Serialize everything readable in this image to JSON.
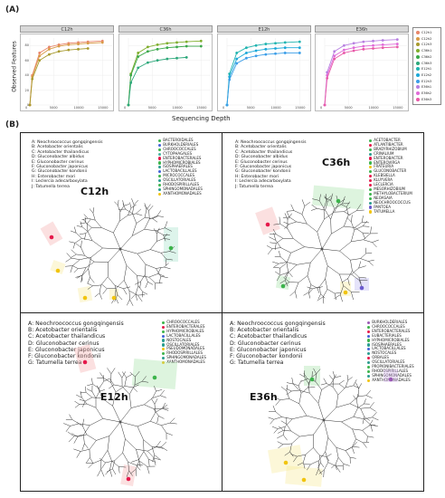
{
  "panel_a_label": "(A)",
  "panel_b_label": "(B)",
  "chart_data": {
    "type": "line",
    "ylabel": "Observed Features",
    "xlabel": "Sequencing Depth",
    "x": [
      0,
      1000,
      2500,
      5000,
      7500,
      10000,
      12500,
      15000
    ],
    "xticks": [
      "0",
      "5000",
      "10000",
      "15000"
    ],
    "yticks": [
      "0",
      "20",
      "40",
      "60",
      "80"
    ],
    "ylim": [
      0,
      90
    ],
    "xlim": [
      0,
      17000
    ],
    "facets": [
      {
        "title": "C12h",
        "series": [
          {
            "name": "C12h1",
            "color": "#e8866a",
            "x": [
              0,
              500,
              2000,
              4000,
              6000,
              8000,
              10000,
              12000,
              15000
            ],
            "values": [
              0,
              40,
              70,
              78,
              81,
              83,
              84,
              85,
              86
            ]
          },
          {
            "name": "C12h2",
            "color": "#d99a45",
            "x": [
              0,
              500,
              2000,
              4000,
              6000,
              8000,
              10000,
              12000,
              15000
            ],
            "values": [
              0,
              38,
              66,
              75,
              79,
              81,
              82,
              83,
              84
            ]
          },
          {
            "name": "C12h3",
            "color": "#a89a2e",
            "x": [
              0,
              500,
              2000,
              4000,
              6000,
              8000,
              10000,
              12000
            ],
            "values": [
              0,
              35,
              60,
              68,
              72,
              74,
              75,
              76
            ]
          }
        ]
      },
      {
        "title": "C36h",
        "series": [
          {
            "name": "C36h1",
            "color": "#7fae2c",
            "x": [
              0,
              500,
              2000,
              4000,
              6000,
              8000,
              10000,
              12000,
              15000
            ],
            "values": [
              0,
              42,
              70,
              78,
              81,
              83,
              84,
              85,
              86
            ]
          },
          {
            "name": "C36h2",
            "color": "#3aa84a",
            "x": [
              0,
              500,
              2000,
              4000,
              6000,
              8000,
              10000,
              12000,
              15000
            ],
            "values": [
              0,
              40,
              65,
              72,
              75,
              77,
              78,
              79,
              79
            ]
          },
          {
            "name": "C36h3",
            "color": "#2ca87a",
            "x": [
              0,
              500,
              2000,
              4000,
              6000,
              8000,
              10000,
              12000
            ],
            "values": [
              0,
              30,
              50,
              57,
              60,
              62,
              63,
              64
            ]
          }
        ]
      },
      {
        "title": "E12h",
        "series": [
          {
            "name": "E12h1",
            "color": "#20b4b0",
            "x": [
              0,
              500,
              2000,
              4000,
              6000,
              8000,
              10000,
              12000,
              15000
            ],
            "values": [
              0,
              42,
              70,
              77,
              80,
              82,
              83,
              84,
              85
            ]
          },
          {
            "name": "E12h2",
            "color": "#1ca8d8",
            "x": [
              0,
              500,
              2000,
              4000,
              6000,
              8000,
              10000,
              12000,
              15000
            ],
            "values": [
              0,
              38,
              62,
              70,
              73,
              75,
              76,
              77,
              77
            ]
          },
          {
            "name": "E12h3",
            "color": "#3b9ee8",
            "x": [
              0,
              500,
              2000,
              4000,
              6000,
              8000,
              10000,
              12000,
              15000
            ],
            "values": [
              0,
              34,
              56,
              63,
              66,
              68,
              69,
              70,
              70
            ]
          }
        ]
      },
      {
        "title": "E36h",
        "series": [
          {
            "name": "E36h1",
            "color": "#b77fe0",
            "x": [
              0,
              500,
              2000,
              4000,
              6000,
              8000,
              10000,
              12000,
              15000
            ],
            "values": [
              0,
              44,
              72,
              80,
              83,
              85,
              86,
              87,
              88
            ]
          },
          {
            "name": "E36h2",
            "color": "#e06ad8",
            "x": [
              0,
              500,
              2000,
              4000,
              6000,
              8000,
              10000,
              12000,
              15000
            ],
            "values": [
              0,
              40,
              66,
              74,
              77,
              79,
              80,
              81,
              82
            ]
          },
          {
            "name": "E36h3",
            "color": "#e85aa8",
            "x": [
              0,
              500,
              2000,
              4000,
              6000,
              8000,
              10000,
              12000,
              15000
            ],
            "values": [
              0,
              36,
              62,
              70,
              73,
              75,
              76,
              77,
              78
            ]
          }
        ]
      }
    ],
    "legend_position": "right"
  },
  "legend": [
    {
      "label": "C12h1",
      "color": "#e8866a"
    },
    {
      "label": "C12h2",
      "color": "#d99a45"
    },
    {
      "label": "C12h3",
      "color": "#a89a2e"
    },
    {
      "label": "C36h1",
      "color": "#7fae2c"
    },
    {
      "label": "C36h2",
      "color": "#3aa84a"
    },
    {
      "label": "C36h3",
      "color": "#2ca87a"
    },
    {
      "label": "E12h1",
      "color": "#20b4b0"
    },
    {
      "label": "E12h2",
      "color": "#1ca8d8"
    },
    {
      "label": "E12h3",
      "color": "#3b9ee8"
    },
    {
      "label": "E36h1",
      "color": "#b77fe0"
    },
    {
      "label": "E36h2",
      "color": "#e06ad8"
    },
    {
      "label": "E36h3",
      "color": "#e85aa8"
    }
  ],
  "trees": [
    {
      "title": "C12h",
      "species": [
        "A: Neochroococcus gongqingensis",
        "B: Acetobacter orientalis",
        "C: Acetobacter thailandicus",
        "D: Gluconobacter albidus",
        "E: Gluconobacter cerinus",
        "F: Gluconobacter japonicus",
        "G: Gluconobacter kondonii",
        "H: Enterobacter mori",
        "I: Leclercia adecarboxylata",
        "J: Tatumella terrea"
      ],
      "taxa": [
        {
          "label": "BACTEROIDALES",
          "color": "#3cb44b"
        },
        {
          "label": "BURKHOLDERIALES",
          "color": "#4363d8"
        },
        {
          "label": "CHROOCOCCALES",
          "color": "#3cb44b"
        },
        {
          "label": "CYTOPHAGALES",
          "color": "#46b4a0"
        },
        {
          "label": "ENTEROBACTERALES",
          "color": "#e6194b"
        },
        {
          "label": "HYPHOMICROBIALES",
          "color": "#3cb44b"
        },
        {
          "label": "ISOSPHAERALES",
          "color": "#2a9d8f"
        },
        {
          "label": "LACTOBACILLALES",
          "color": "#4363d8"
        },
        {
          "label": "MICROCOCCALES",
          "color": "#3cb44b"
        },
        {
          "label": "OSCILLATORIALES",
          "color": "#2a9d8f"
        },
        {
          "label": "RHODOSPIRILLALES",
          "color": "#3cb44b"
        },
        {
          "label": "SPHINGOMONADALES",
          "color": "#2a9d8f"
        },
        {
          "label": "XANTHOMONADALES",
          "color": "#f1c40f"
        }
      ]
    },
    {
      "title": "C36h",
      "species": [
        "A: Neochroococcus gongqingensis",
        "B: Acetobacter orientalis",
        "C: Acetobacter thailandicus",
        "D: Gluconobacter albidus",
        "E: Gluconobacter cerinus",
        "F: Gluconobacter japonicus",
        "G: Gluconobacter kondonii",
        "H: Enterobacter mori",
        "I: Leclercia adecarboxylata",
        "J: Tatumella terrea"
      ],
      "taxa": [
        {
          "label": "ACETOBACTER",
          "color": "#3cb44b"
        },
        {
          "label": "ATLANTIBACTER",
          "color": "#e6194b"
        },
        {
          "label": "BRADYRHIZOBIUM",
          "color": "#3cb44b"
        },
        {
          "label": "CRINALIUM",
          "color": "#2a9d8f"
        },
        {
          "label": "ENTEROBACTER",
          "color": "#e6194b"
        },
        {
          "label": "ENTEROVIRGA",
          "color": "#3cb44b"
        },
        {
          "label": "FRATEURIA",
          "color": "#f1c40f"
        },
        {
          "label": "GLUCONOBACTER",
          "color": "#3cb44b"
        },
        {
          "label": "KLEBSIELLA",
          "color": "#e6194b"
        },
        {
          "label": "KLUYVERA",
          "color": "#e6194b"
        },
        {
          "label": "LECLERCIA",
          "color": "#e6194b"
        },
        {
          "label": "MESORHIZOBIUM",
          "color": "#3cb44b"
        },
        {
          "label": "METHYLOBACTERIUM",
          "color": "#3cb44b"
        },
        {
          "label": "NEOASAIA",
          "color": "#3cb44b"
        },
        {
          "label": "NEOCHROOCOCCUS",
          "color": "#2a9d8f"
        },
        {
          "label": "PANTOEA",
          "color": "#6a5acd"
        },
        {
          "label": "TATUMELLA",
          "color": "#f1c40f"
        }
      ]
    },
    {
      "title": "E12h",
      "species": [
        "A: Neochroococcus gongqingensis",
        "B: Acetobacter orientalis",
        "C: Acetobacter thailandicus",
        "D: Gluconobacter cerinus",
        "E: Gluconobacter japonicus",
        "F: Gluconobacter kondonii",
        "G: Tatumella terrea"
      ],
      "taxa": [
        {
          "label": "CHROOCOCCALES",
          "color": "#3cb44b"
        },
        {
          "label": "ENTEROBACTERALES",
          "color": "#e6194b"
        },
        {
          "label": "HYPHOMICROBIALES",
          "color": "#3cb44b"
        },
        {
          "label": "LACTOBACILLALES",
          "color": "#4363d8"
        },
        {
          "label": "NOSTOCALES",
          "color": "#2a9d8f"
        },
        {
          "label": "OSCILLATORIALES",
          "color": "#2a9d8f"
        },
        {
          "label": "PSEUDOMONADALES",
          "color": "#f1c40f"
        },
        {
          "label": "RHODOSPIRILLALES",
          "color": "#3cb44b"
        },
        {
          "label": "SPHINGOMONADALES",
          "color": "#2a9d8f"
        },
        {
          "label": "XANTHOMONADALES",
          "color": "#f1c40f"
        }
      ]
    },
    {
      "title": "E36h",
      "species": [
        "A: Neochroococcus gongqingensis",
        "B: Acetobacter orientalis",
        "C: Acetobacter thailandicus",
        "D: Gluconobacter cerinus",
        "E: Gluconobacter japonicus",
        "F: Gluconobacter kondonii",
        "G: Tatumella terrea"
      ],
      "taxa": [
        {
          "label": "BURKHOLDERIALES",
          "color": "#9b59b6"
        },
        {
          "label": "CHROOCOCCALES",
          "color": "#3cb44b"
        },
        {
          "label": "ENTEROBACTERALES",
          "color": "#e6194b"
        },
        {
          "label": "EUBACTERIALES",
          "color": "#4363d8"
        },
        {
          "label": "HYPHOMICROBIALES",
          "color": "#3cb44b"
        },
        {
          "label": "ISOSPHAERALES",
          "color": "#2a9d8f"
        },
        {
          "label": "LACTOBACILLALES",
          "color": "#4363d8"
        },
        {
          "label": "NOSTOCALES",
          "color": "#2a9d8f"
        },
        {
          "label": "ORBALES",
          "color": "#e6194b"
        },
        {
          "label": "OSCILLATORIALES",
          "color": "#2a9d8f"
        },
        {
          "label": "PROPIONIBACTERIALES",
          "color": "#3cb44b"
        },
        {
          "label": "RHODOSPIRILLALES",
          "color": "#3cb44b"
        },
        {
          "label": "SPHINGOMONADALES",
          "color": "#2a9d8f"
        },
        {
          "label": "XANTHOMONADALES",
          "color": "#f1c40f"
        }
      ]
    }
  ]
}
